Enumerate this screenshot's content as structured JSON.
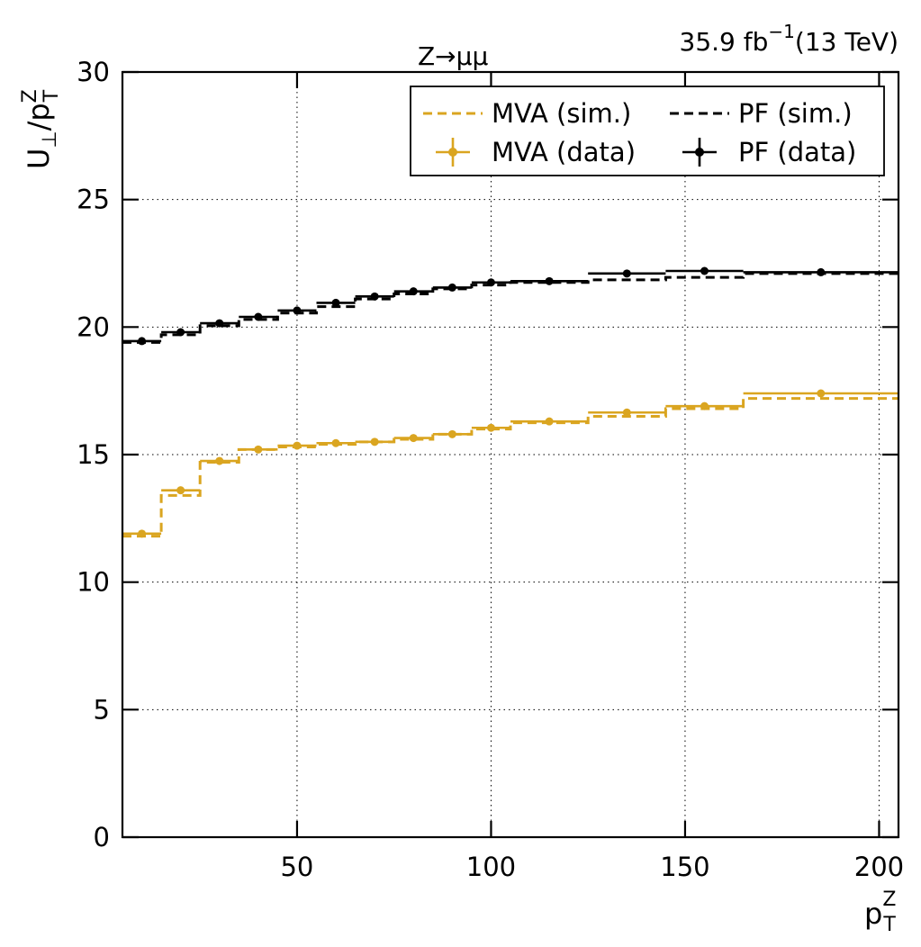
{
  "chart_data": {
    "type": "line",
    "lumi_label": "35.9 fb",
    "lumi_exp": "−1",
    "energy_label": "(13 TeV)",
    "process_label": "Z→μμ",
    "ylabel": {
      "main": "U",
      "sub1": "⊥",
      "slash": "/p",
      "sup": "Z",
      "sub2": "T"
    },
    "xlabel": {
      "main": "p",
      "sup": "Z",
      "sub": "T"
    },
    "xlim": [
      5,
      205
    ],
    "ylim": [
      0,
      30
    ],
    "x_ticks": [
      50,
      100,
      150,
      200
    ],
    "x_tick_labels": [
      "50",
      "100",
      "150",
      "200"
    ],
    "y_ticks": [
      0,
      5,
      10,
      15,
      20,
      25,
      30
    ],
    "y_tick_labels": [
      "0",
      "5",
      "10",
      "15",
      "20",
      "25",
      "30"
    ],
    "grid": true,
    "legend_position": "top-right",
    "bin_edges": [
      5,
      15,
      25,
      35,
      45,
      55,
      65,
      75,
      85,
      95,
      105,
      125,
      145,
      165,
      205
    ],
    "series": [
      {
        "name": "MVA (sim.)",
        "kind": "sim",
        "color": "#daa520",
        "values": [
          11.8,
          13.4,
          14.7,
          15.2,
          15.3,
          15.4,
          15.5,
          15.6,
          15.8,
          16.0,
          16.25,
          16.5,
          16.8,
          17.2
        ]
      },
      {
        "name": "PF (sim.)",
        "kind": "sim",
        "color": "#000000",
        "values": [
          19.4,
          19.7,
          20.05,
          20.3,
          20.55,
          20.8,
          21.1,
          21.3,
          21.5,
          21.65,
          21.75,
          21.85,
          21.95,
          22.1
        ]
      },
      {
        "name": "MVA (data)",
        "kind": "data",
        "color": "#daa520",
        "values": [
          11.9,
          13.6,
          14.75,
          15.2,
          15.35,
          15.45,
          15.5,
          15.65,
          15.8,
          16.05,
          16.3,
          16.65,
          16.9,
          17.4
        ]
      },
      {
        "name": "PF (data)",
        "kind": "data",
        "color": "#000000",
        "values": [
          19.45,
          19.8,
          20.15,
          20.4,
          20.65,
          20.95,
          21.2,
          21.4,
          21.55,
          21.75,
          21.8,
          22.1,
          22.2,
          22.15
        ]
      }
    ]
  }
}
